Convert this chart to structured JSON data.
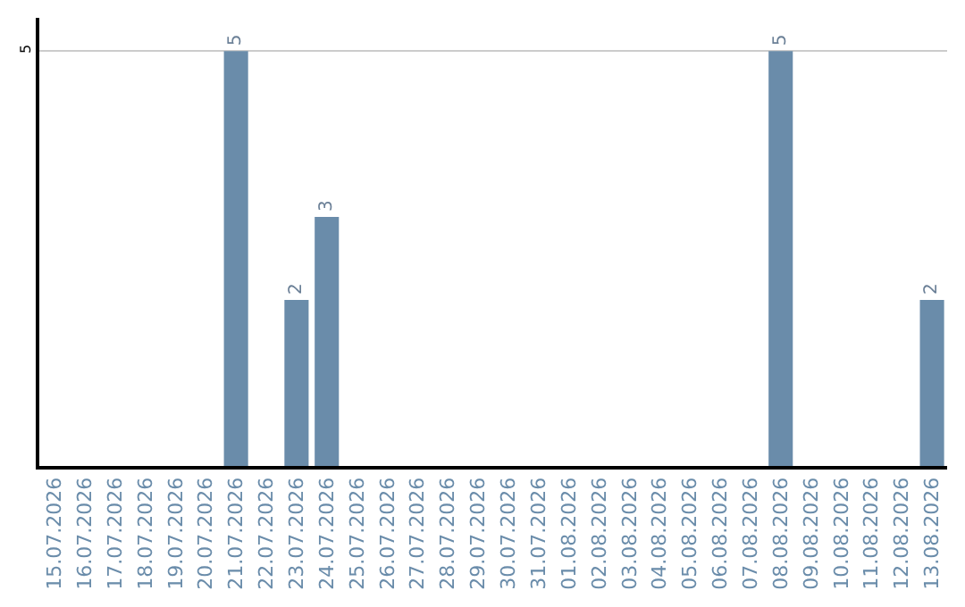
{
  "chart_data": {
    "type": "bar",
    "categories": [
      "15.07.2026",
      "16.07.2026",
      "17.07.2026",
      "18.07.2026",
      "19.07.2026",
      "20.07.2026",
      "21.07.2026",
      "22.07.2026",
      "23.07.2026",
      "24.07.2026",
      "25.07.2026",
      "26.07.2026",
      "27.07.2026",
      "28.07.2026",
      "29.07.2026",
      "30.07.2026",
      "31.07.2026",
      "01.08.2026",
      "02.08.2026",
      "03.08.2026",
      "04.08.2026",
      "05.08.2026",
      "06.08.2026",
      "07.08.2026",
      "08.08.2026",
      "09.08.2026",
      "10.08.2026",
      "11.08.2026",
      "12.08.2026",
      "13.08.2026"
    ],
    "values": [
      0,
      0,
      0,
      0,
      0,
      0,
      5,
      0,
      2,
      3,
      0,
      0,
      0,
      0,
      0,
      0,
      0,
      0,
      0,
      0,
      0,
      0,
      0,
      0,
      5,
      0,
      0,
      0,
      0,
      2
    ],
    "value_labels": [
      null,
      null,
      null,
      null,
      null,
      null,
      "5",
      null,
      "2",
      "3",
      null,
      null,
      null,
      null,
      null,
      null,
      null,
      null,
      null,
      null,
      null,
      null,
      null,
      null,
      "5",
      null,
      null,
      null,
      null,
      "2"
    ],
    "color": "#6a8caa",
    "ylim": [
      0,
      5.4
    ],
    "yticks": [
      5
    ],
    "grid": "y",
    "legend": false
  }
}
